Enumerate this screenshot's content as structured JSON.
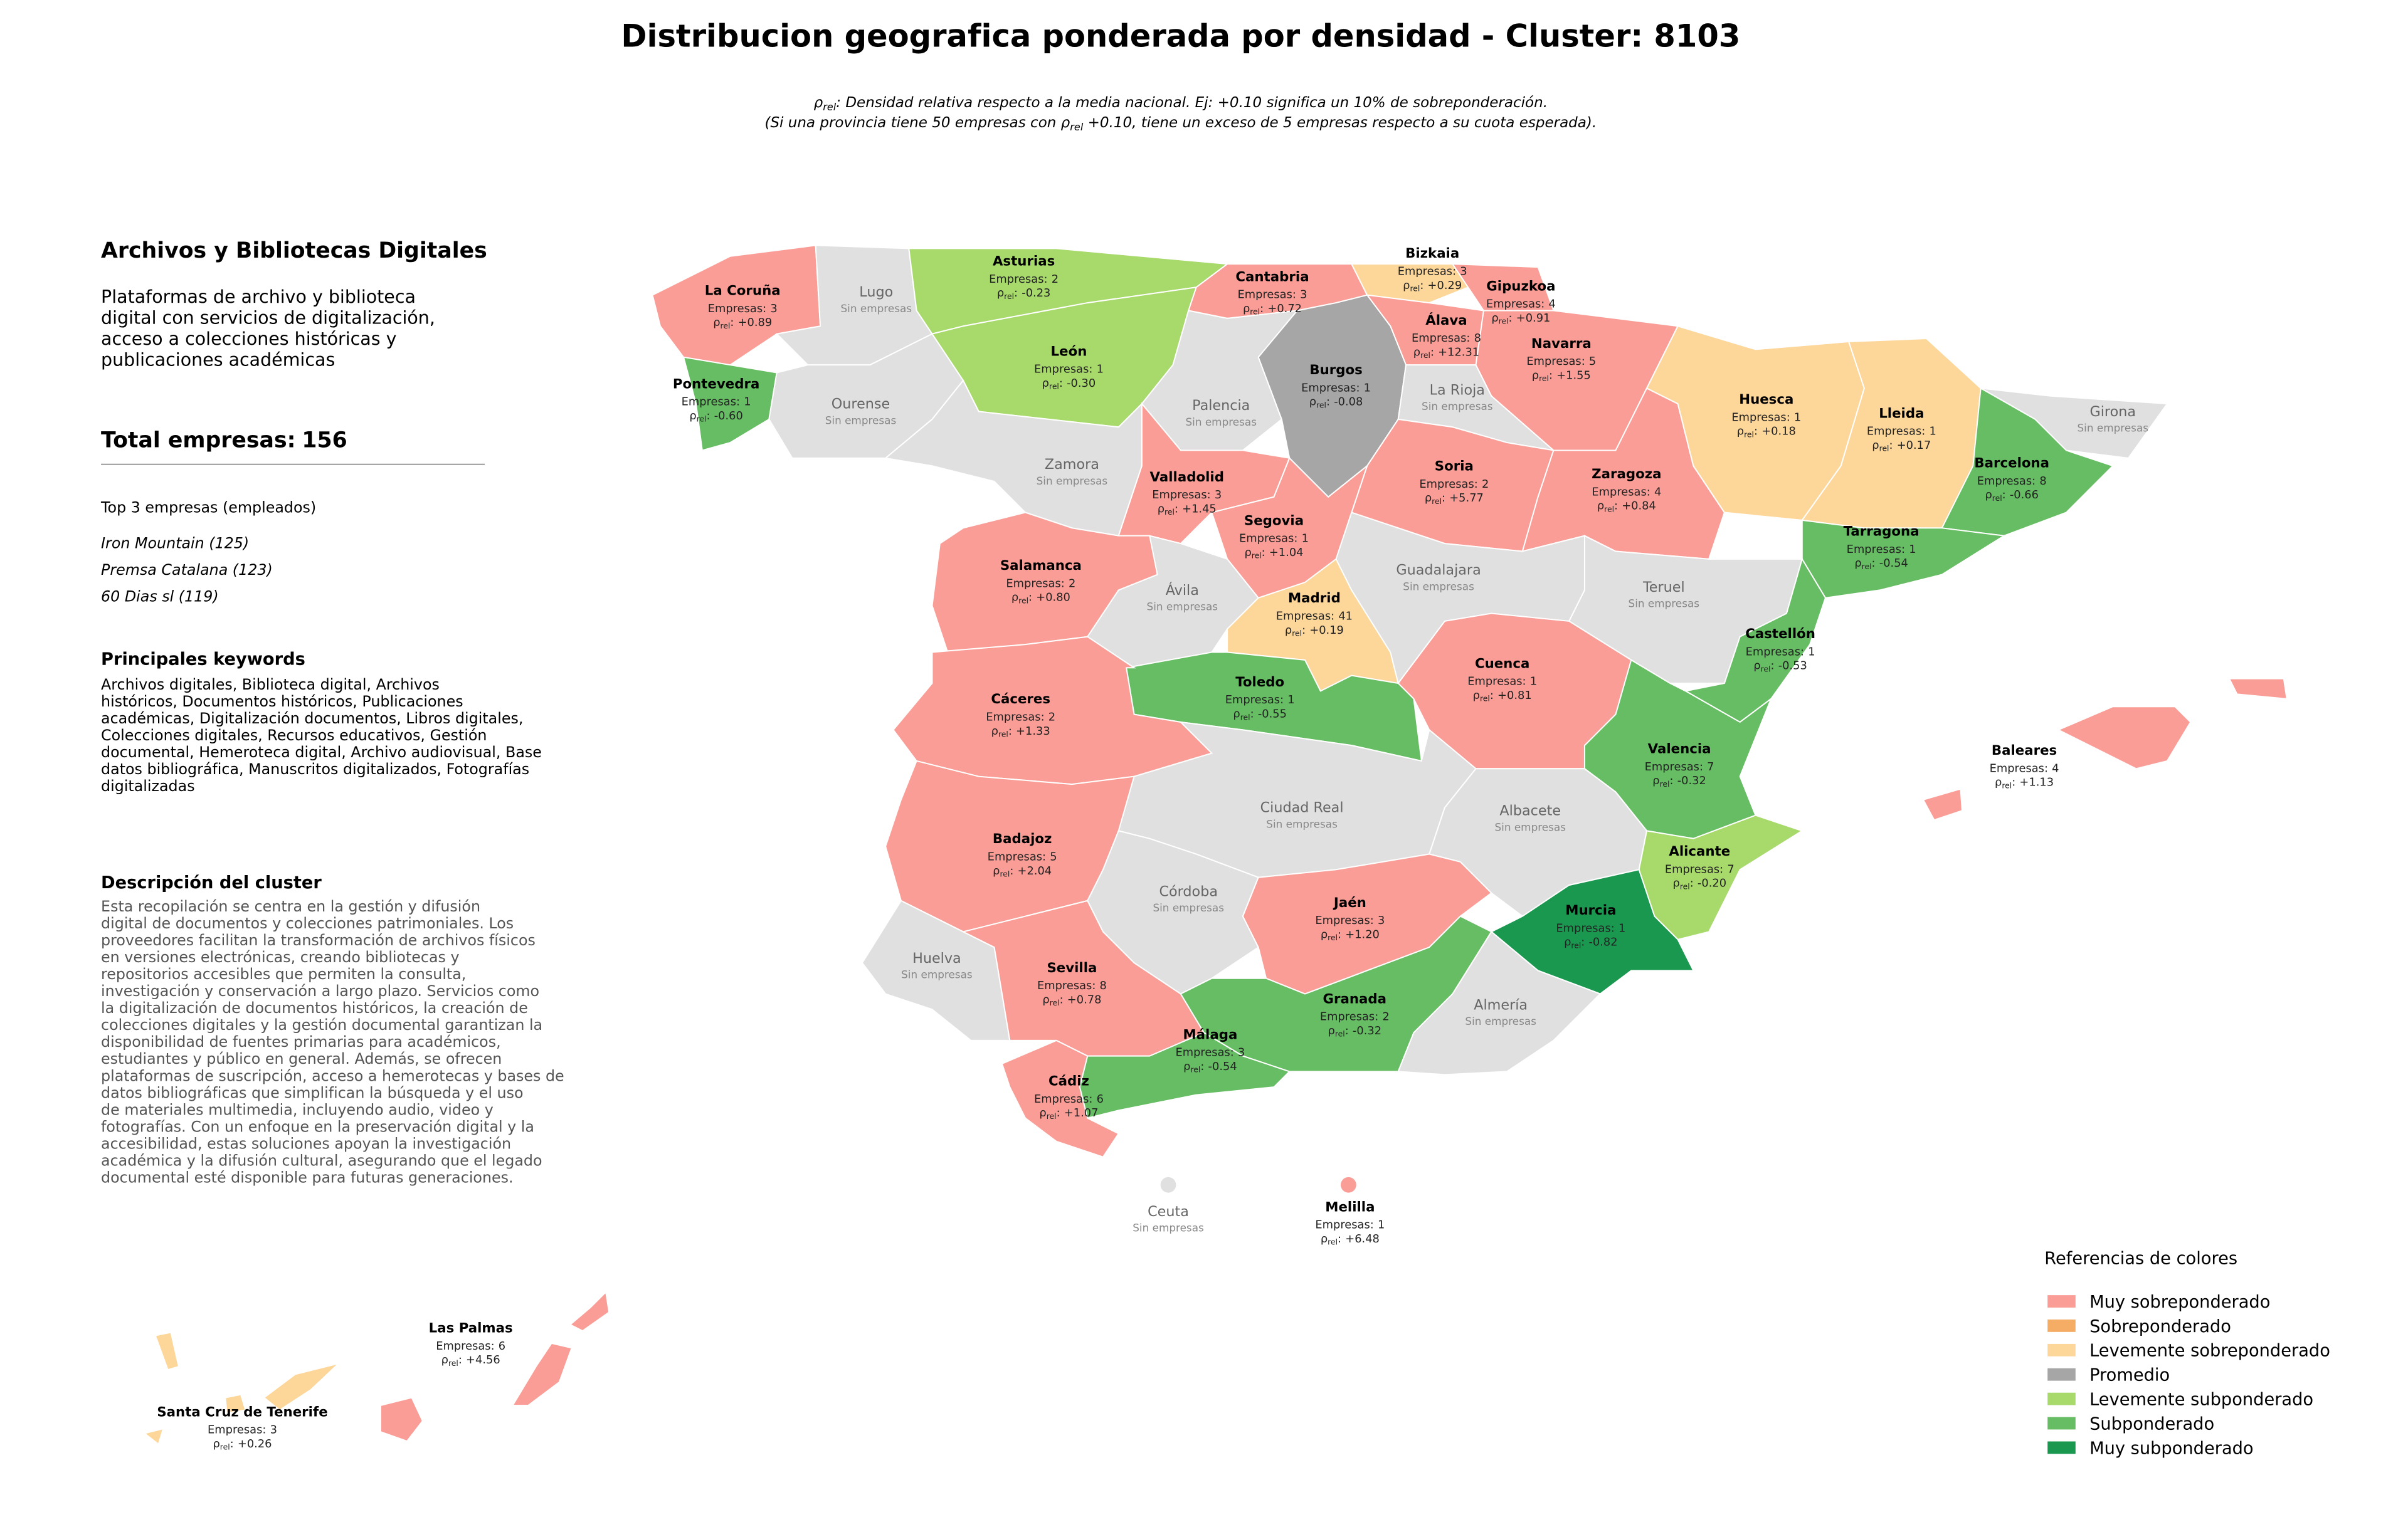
{
  "header": {
    "title": "Distribucion geografica ponderada por densidad - Cluster: 8103",
    "density_symbol": "ρ",
    "density_sub": "rel",
    "density_sep": ":",
    "subtitle_line1_text": " Densidad relativa respecto a la media nacional. Ej: +0.10 significa un 10% de sobreponderación.",
    "subtitle_line2_start": "(Si una provincia tiene 50 empresas con ",
    "subtitle_line2_end": " +0.10, tiene un exceso de 5 empresas respecto a su cuota esperada)."
  },
  "panel": {
    "title": "Archivos y Bibliotecas Digitales",
    "summary_lines": [
      "Plataformas de archivo y biblioteca",
      "digital con servicios de digitalización,",
      "acceso a colecciones históricas y",
      "publicaciones académicas"
    ],
    "total_label": "Total empresas:",
    "total": 156,
    "top_heading": "Top 3 empresas (empleados)",
    "top_companies": [
      "Iron Mountain (125)",
      "Premsa Catalana (123)",
      "60 Dias sl (119)"
    ],
    "keywords_heading": "Principales keywords",
    "keywords_lines": [
      "Archivos digitales, Biblioteca digital, Archivos",
      "históricos, Documentos históricos, Publicaciones",
      "académicas, Digitalización documentos, Libros digitales,",
      "Colecciones digitales, Recursos educativos, Gestión",
      "documental, Hemeroteca digital, Archivo audiovisual, Base",
      "datos bibliográfica, Manuscritos digitalizados, Fotografías",
      "digitalizadas"
    ],
    "description_heading": "Descripción del cluster",
    "description_lines": [
      "Esta recopilación se centra en la gestión y difusión",
      "digital de documentos y colecciones patrimoniales. Los",
      "proveedores facilitan la transformación de archivos físicos",
      "en versiones electrónicas, creando bibliotecas y",
      "repositorios accesibles que permiten la consulta,",
      "investigación y conservación a largo plazo. Servicios como",
      "la digitalización de documentos históricos, la creación de",
      "colecciones digitales y la gestión documental garantizan la",
      "disponibilidad de fuentes primarias para académicos,",
      "estudiantes y público en general. Además, se ofrecen",
      "plataformas de suscripción, acceso a hemerotecas y bases de",
      "datos bibliográficas que simplifican la búsqueda y el uso",
      "de materiales multimedia, incluyendo audio, video y",
      "fotografías. Con un enfoque en la preservación digital y la",
      "accesibilidad, estas soluciones apoyan la investigación",
      "académica y la difusión cultural, asegurando que el legado",
      "documental esté disponible para futuras generaciones."
    ]
  },
  "map": {
    "companies_label": "Empresas:",
    "no_companies_label": "Sin empresas",
    "no_data_color": "#e0e0e0",
    "legend_title": "Referencias de colores",
    "legend": [
      {
        "name": "Muy sobreponderado",
        "color": "#f99d96"
      },
      {
        "name": "Sobreponderado",
        "color": "#f5ad66"
      },
      {
        "name": "Levemente sobreponderado",
        "color": "#fdd699"
      },
      {
        "name": "Promedio",
        "color": "#a6a6a6"
      },
      {
        "name": "Levemente subponderado",
        "color": "#a7d96b"
      },
      {
        "name": "Subponderado",
        "color": "#66bd63"
      },
      {
        "name": "Muy subponderado",
        "color": "#1a9850"
      }
    ],
    "provinces": [
      {
        "name": "La Coruña",
        "companies": 3,
        "density": 0.89,
        "density_label": "+0.89",
        "category": 0
      },
      {
        "name": "Lugo"
      },
      {
        "name": "Asturias",
        "companies": 2,
        "density": -0.23,
        "density_label": "-0.23",
        "category": 4
      },
      {
        "name": "Cantabria",
        "companies": 3,
        "density": 0.72,
        "density_label": "+0.72",
        "category": 0
      },
      {
        "name": "Bizkaia",
        "companies": 3,
        "density": 0.29,
        "density_label": "+0.29",
        "category": 2
      },
      {
        "name": "Gipuzkoa",
        "companies": 4,
        "density": 0.91,
        "density_label": "+0.91",
        "category": 0
      },
      {
        "name": "Álava",
        "companies": 8,
        "density": 12.31,
        "density_label": "+12.31",
        "category": 0
      },
      {
        "name": "Navarra",
        "companies": 5,
        "density": 1.55,
        "density_label": "+1.55",
        "category": 0
      },
      {
        "name": "Pontevedra",
        "companies": 1,
        "density": -0.6,
        "density_label": "-0.60",
        "category": 5
      },
      {
        "name": "Ourense"
      },
      {
        "name": "León",
        "companies": 1,
        "density": -0.3,
        "density_label": "-0.30",
        "category": 4
      },
      {
        "name": "Palencia"
      },
      {
        "name": "Burgos",
        "companies": 1,
        "density": -0.08,
        "density_label": "-0.08",
        "category": 3
      },
      {
        "name": "La Rioja"
      },
      {
        "name": "Zamora"
      },
      {
        "name": "Valladolid",
        "companies": 3,
        "density": 1.45,
        "density_label": "+1.45",
        "category": 0
      },
      {
        "name": "Soria",
        "companies": 2,
        "density": 5.77,
        "density_label": "+5.77",
        "category": 0
      },
      {
        "name": "Segovia",
        "companies": 1,
        "density": 1.04,
        "density_label": "+1.04",
        "category": 0
      },
      {
        "name": "Zaragoza",
        "companies": 4,
        "density": 0.84,
        "density_label": "+0.84",
        "category": 0
      },
      {
        "name": "Huesca",
        "companies": 1,
        "density": 0.18,
        "density_label": "+0.18",
        "category": 2
      },
      {
        "name": "Lleida",
        "companies": 1,
        "density": 0.17,
        "density_label": "+0.17",
        "category": 2
      },
      {
        "name": "Girona"
      },
      {
        "name": "Barcelona",
        "companies": 8,
        "density": -0.66,
        "density_label": "-0.66",
        "category": 5
      },
      {
        "name": "Tarragona",
        "companies": 1,
        "density": -0.54,
        "density_label": "-0.54",
        "category": 5
      },
      {
        "name": "Salamanca",
        "companies": 2,
        "density": 0.8,
        "density_label": "+0.80",
        "category": 0
      },
      {
        "name": "Ávila"
      },
      {
        "name": "Madrid",
        "companies": 41,
        "density": 0.19,
        "density_label": "+0.19",
        "category": 2
      },
      {
        "name": "Guadalajara"
      },
      {
        "name": "Teruel"
      },
      {
        "name": "Castellón",
        "companies": 1,
        "density": -0.53,
        "density_label": "-0.53",
        "category": 5
      },
      {
        "name": "Cuenca",
        "companies": 1,
        "density": 0.81,
        "density_label": "+0.81",
        "category": 0
      },
      {
        "name": "Toledo",
        "companies": 1,
        "density": -0.55,
        "density_label": "-0.55",
        "category": 5
      },
      {
        "name": "Cáceres",
        "companies": 2,
        "density": 1.33,
        "density_label": "+1.33",
        "category": 0
      },
      {
        "name": "Valencia",
        "companies": 7,
        "density": -0.32,
        "density_label": "-0.32",
        "category": 5
      },
      {
        "name": "Ciudad Real"
      },
      {
        "name": "Albacete"
      },
      {
        "name": "Badajoz",
        "companies": 5,
        "density": 2.04,
        "density_label": "+2.04",
        "category": 0
      },
      {
        "name": "Alicante",
        "companies": 7,
        "density": -0.2,
        "density_label": "-0.20",
        "category": 4
      },
      {
        "name": "Córdoba"
      },
      {
        "name": "Jaén",
        "companies": 3,
        "density": 1.2,
        "density_label": "+1.20",
        "category": 0
      },
      {
        "name": "Murcia",
        "companies": 1,
        "density": -0.82,
        "density_label": "-0.82",
        "category": 6
      },
      {
        "name": "Huelva"
      },
      {
        "name": "Sevilla",
        "companies": 8,
        "density": 0.78,
        "density_label": "+0.78",
        "category": 0
      },
      {
        "name": "Granada",
        "companies": 2,
        "density": -0.32,
        "density_label": "-0.32",
        "category": 5
      },
      {
        "name": "Almería"
      },
      {
        "name": "Málaga",
        "companies": 3,
        "density": -0.54,
        "density_label": "-0.54",
        "category": 5
      },
      {
        "name": "Cádiz",
        "companies": 6,
        "density": 1.07,
        "density_label": "+1.07",
        "category": 0
      },
      {
        "name": "Baleares",
        "companies": 4,
        "density": 1.13,
        "density_label": "+1.13",
        "category": 0
      },
      {
        "name": "Las Palmas",
        "companies": 6,
        "density": 4.56,
        "density_label": "+4.56",
        "category": 0
      },
      {
        "name": "Santa Cruz de Tenerife",
        "companies": 3,
        "density": 0.26,
        "density_label": "+0.26",
        "category": 2
      },
      {
        "name": "Ceuta"
      },
      {
        "name": "Melilla",
        "companies": 1,
        "density": 6.48,
        "density_label": "+6.48",
        "category": 0
      }
    ]
  }
}
